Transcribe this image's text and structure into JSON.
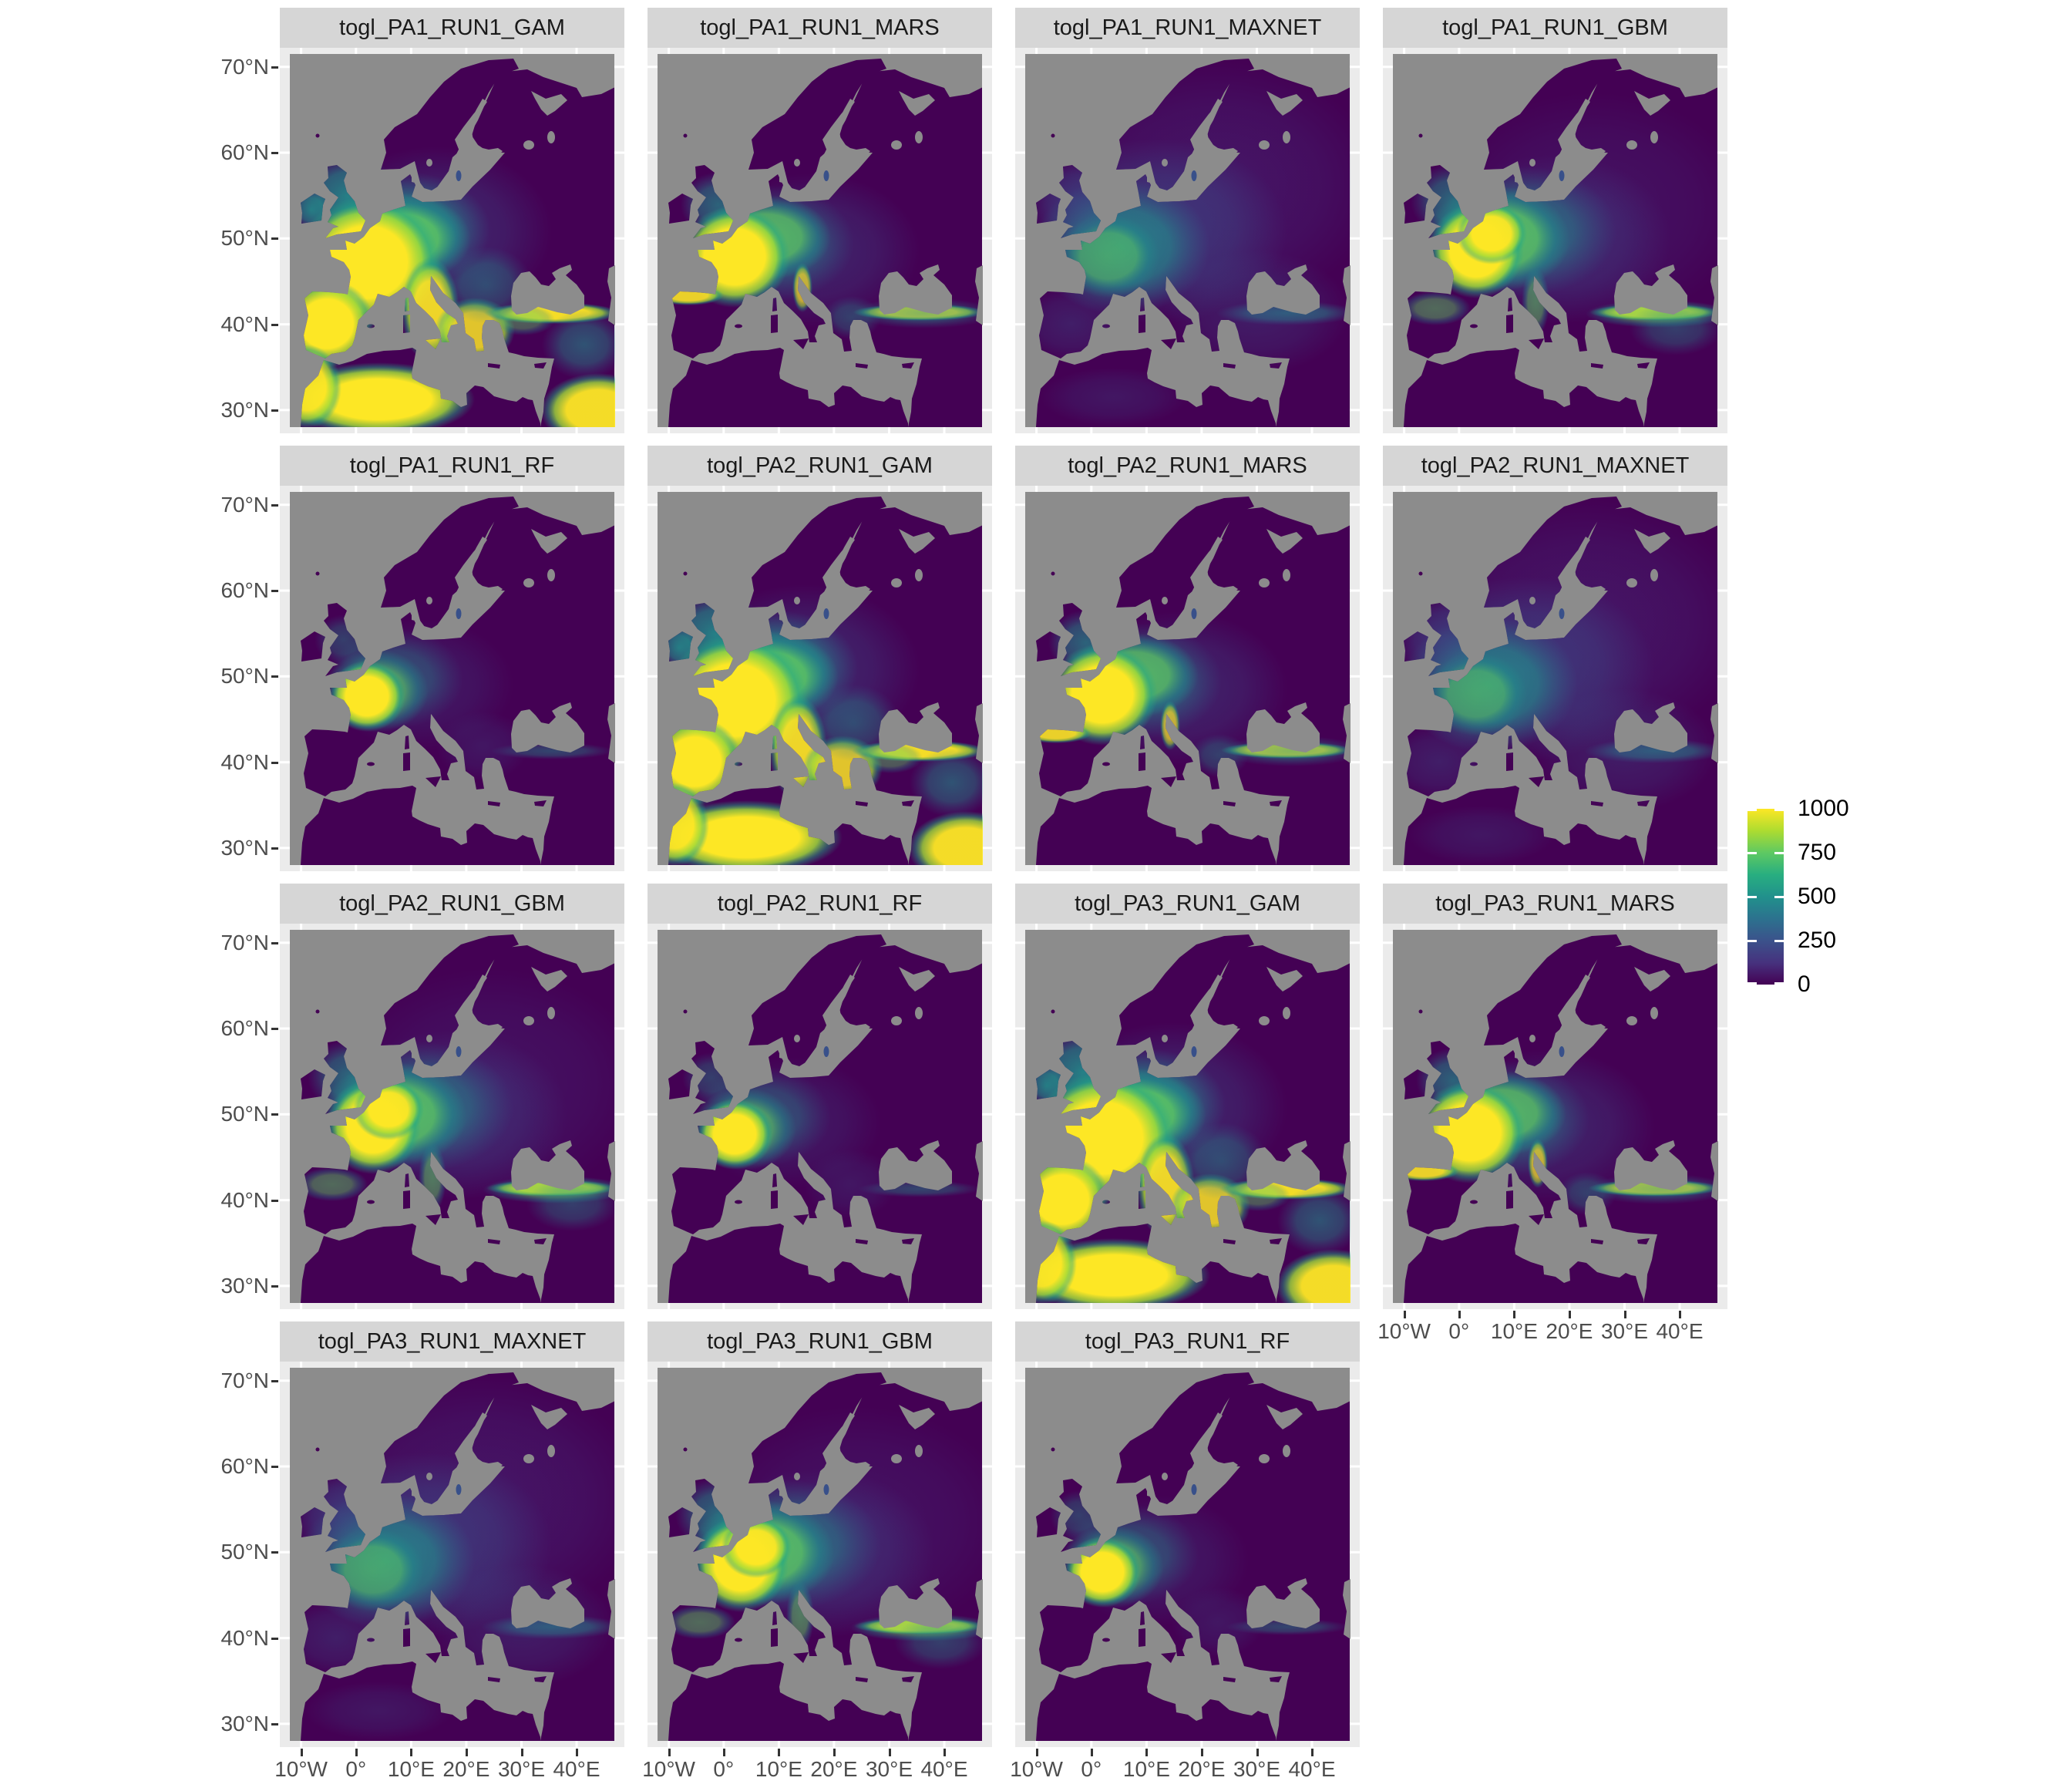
{
  "facets": {
    "panels": [
      {
        "title": "togl_PA1_RUN1_GAM",
        "model": "GAM"
      },
      {
        "title": "togl_PA1_RUN1_MARS",
        "model": "MARS"
      },
      {
        "title": "togl_PA1_RUN1_MAXNET",
        "model": "MAXNET"
      },
      {
        "title": "togl_PA1_RUN1_GBM",
        "model": "GBM"
      },
      {
        "title": "togl_PA1_RUN1_RF",
        "model": "RF"
      },
      {
        "title": "togl_PA2_RUN1_GAM",
        "model": "GAM"
      },
      {
        "title": "togl_PA2_RUN1_MARS",
        "model": "MARS"
      },
      {
        "title": "togl_PA2_RUN1_MAXNET",
        "model": "MAXNET"
      },
      {
        "title": "togl_PA2_RUN1_GBM",
        "model": "GBM"
      },
      {
        "title": "togl_PA2_RUN1_RF",
        "model": "RF"
      },
      {
        "title": "togl_PA3_RUN1_GAM",
        "model": "GAM"
      },
      {
        "title": "togl_PA3_RUN1_MARS",
        "model": "MARS"
      },
      {
        "title": "togl_PA3_RUN1_MAXNET",
        "model": "MAXNET"
      },
      {
        "title": "togl_PA3_RUN1_GBM",
        "model": "GBM"
      },
      {
        "title": "togl_PA3_RUN1_RF",
        "model": "RF"
      }
    ]
  },
  "axes": {
    "y_ticks": [
      "70°N",
      "60°N",
      "50°N",
      "40°N",
      "30°N"
    ],
    "x_ticks": [
      "10°W",
      "0°",
      "10°E",
      "20°E",
      "30°E",
      "40°E"
    ]
  },
  "legend": {
    "labels": [
      "1000",
      "750",
      "500",
      "250",
      "0"
    ],
    "values": [
      1000,
      750,
      500,
      250,
      0
    ],
    "gradient_bottom_to_top": [
      "#440154",
      "#46327e",
      "#3b528b",
      "#2c728e",
      "#21918c",
      "#28ae80",
      "#5ec962",
      "#addc30",
      "#fde725"
    ]
  },
  "colors": {
    "strip_bg": "#d6d6d6",
    "panel_bg": "#ebebeb",
    "gridline": "#ffffff",
    "sea_na": "#8c8c8c",
    "land_low": "#440154",
    "axis_text": "#4d4d4d",
    "strip_text": "#1a1a1a",
    "scale_low": "#440154",
    "scale_mid": "#21918c",
    "scale_high": "#fde725"
  }
}
